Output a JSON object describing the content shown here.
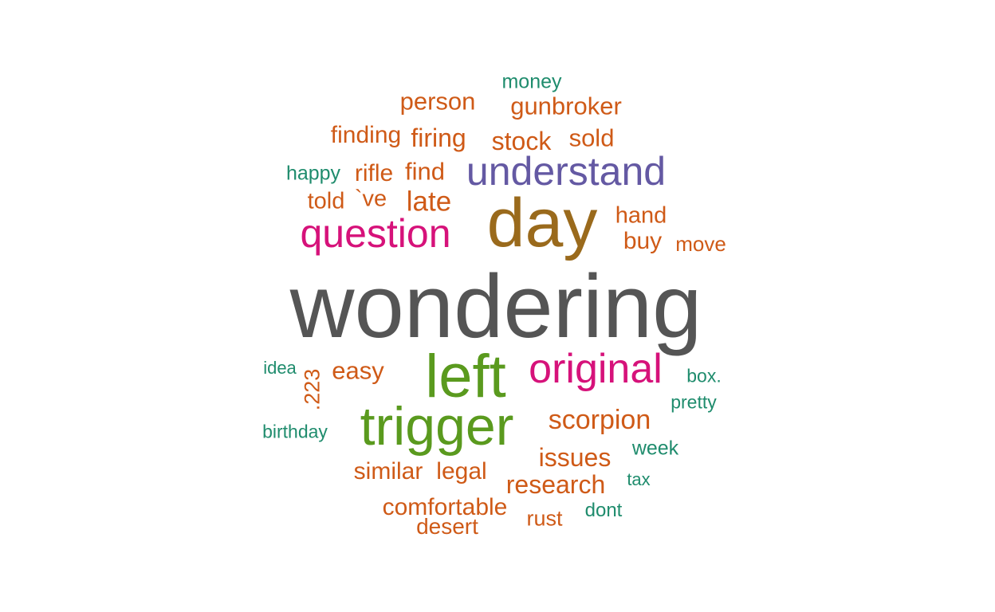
{
  "palette": {
    "gray": "#555555",
    "brown": "#9a6a1c",
    "purple": "#6459a3",
    "magenta": "#d6127a",
    "green": "#5a9a1e",
    "orange": "#cf5a17",
    "teal": "#1f8c6d"
  },
  "words": [
    {
      "text": "wondering",
      "color": "gray"
    },
    {
      "text": "day",
      "color": "brown"
    },
    {
      "text": "understand",
      "color": "purple"
    },
    {
      "text": "question",
      "color": "magenta"
    },
    {
      "text": "left",
      "color": "green"
    },
    {
      "text": "trigger",
      "color": "green"
    },
    {
      "text": "original",
      "color": "magenta"
    },
    {
      "text": "scorpion",
      "color": "orange"
    },
    {
      "text": "money",
      "color": "teal"
    },
    {
      "text": "person",
      "color": "orange"
    },
    {
      "text": "gunbroker",
      "color": "orange"
    },
    {
      "text": "finding",
      "color": "orange"
    },
    {
      "text": "firing",
      "color": "orange"
    },
    {
      "text": "stock",
      "color": "orange"
    },
    {
      "text": "sold",
      "color": "orange"
    },
    {
      "text": "happy",
      "color": "teal"
    },
    {
      "text": "rifle",
      "color": "orange"
    },
    {
      "text": "find",
      "color": "orange"
    },
    {
      "text": "told",
      "color": "orange"
    },
    {
      "text": "`ve",
      "color": "orange"
    },
    {
      "text": "late",
      "color": "orange"
    },
    {
      "text": "hand",
      "color": "orange"
    },
    {
      "text": "buy",
      "color": "orange"
    },
    {
      "text": "move",
      "color": "orange"
    },
    {
      "text": "idea",
      "color": "teal"
    },
    {
      "text": ".223",
      "color": "orange"
    },
    {
      "text": "easy",
      "color": "orange"
    },
    {
      "text": "box.",
      "color": "teal"
    },
    {
      "text": "pretty",
      "color": "teal"
    },
    {
      "text": "birthday",
      "color": "teal"
    },
    {
      "text": "issues",
      "color": "orange"
    },
    {
      "text": "week",
      "color": "teal"
    },
    {
      "text": "similar",
      "color": "orange"
    },
    {
      "text": "legal",
      "color": "orange"
    },
    {
      "text": "research",
      "color": "orange"
    },
    {
      "text": "tax",
      "color": "teal"
    },
    {
      "text": "comfortable",
      "color": "orange"
    },
    {
      "text": "dont",
      "color": "teal"
    },
    {
      "text": "rust",
      "color": "orange"
    },
    {
      "text": "desert",
      "color": "orange"
    }
  ]
}
